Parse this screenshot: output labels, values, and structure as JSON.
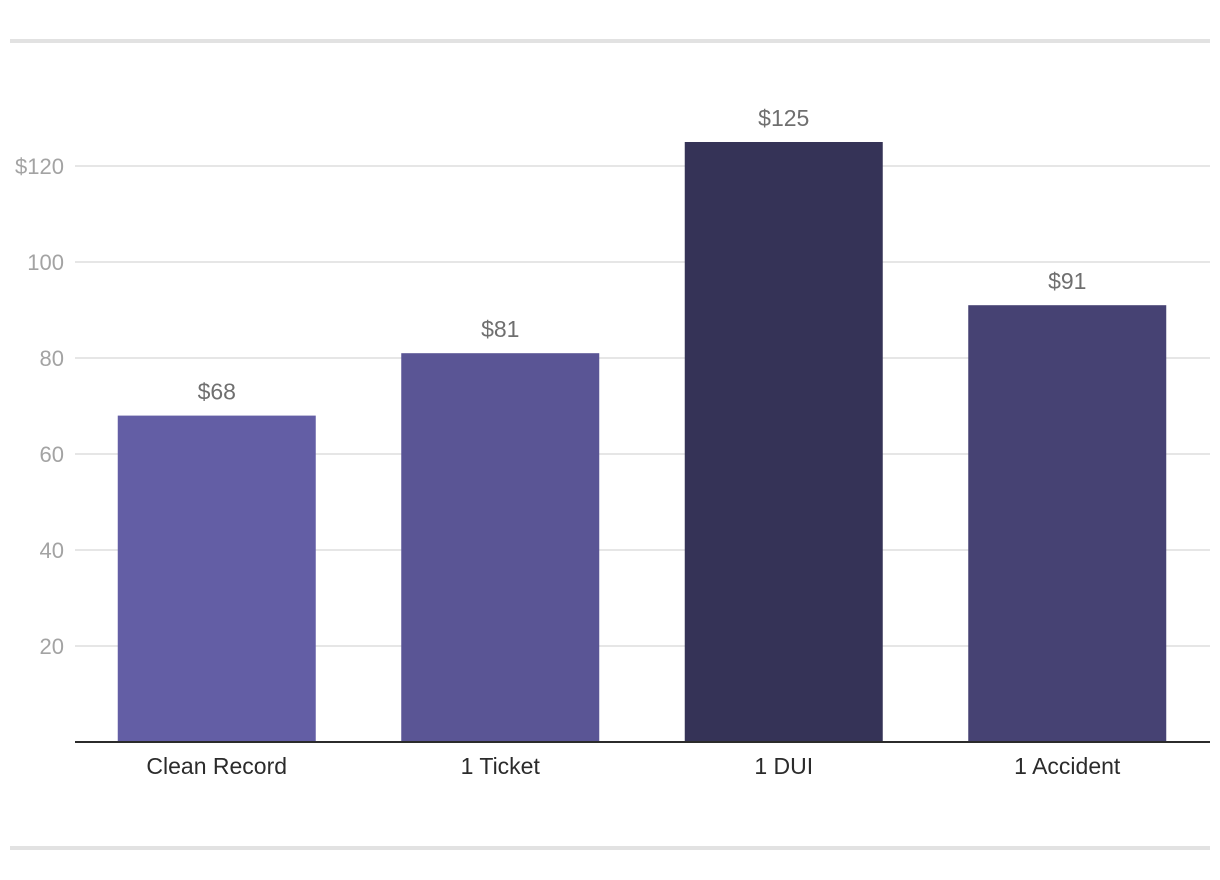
{
  "chart_data": {
    "type": "bar",
    "title": "",
    "xlabel": "",
    "ylabel": "",
    "categories": [
      "Clean Record",
      "1 Ticket",
      "1 DUI",
      "1 Accident"
    ],
    "values": [
      68,
      81,
      125,
      91
    ],
    "value_labels": [
      "$68",
      "$81",
      "$125",
      "$91"
    ],
    "bar_colors": [
      "#635ea5",
      "#5a5595",
      "#353357",
      "#464273"
    ],
    "yticks": [
      20,
      40,
      60,
      80,
      100,
      120
    ],
    "ytick_labels": [
      "20",
      "40",
      "60",
      "80",
      "100",
      "$120"
    ],
    "ylim": [
      0,
      130
    ],
    "grid": true,
    "legend": "none"
  },
  "colors": {
    "gridline": "#e6e6e6",
    "axis": "#2b2b2b",
    "divider": "#e2e2e2"
  }
}
